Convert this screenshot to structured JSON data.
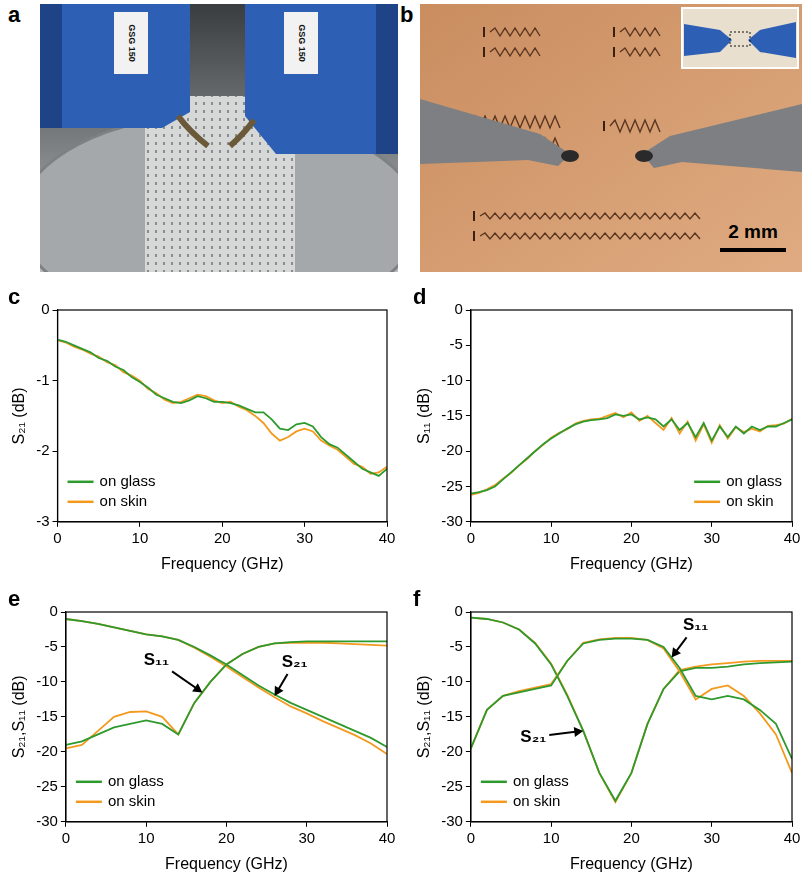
{
  "photos": [
    {
      "panel": "a",
      "labels": [
        "GSG 150",
        "GSG 150"
      ]
    },
    {
      "panel": "b",
      "scale_bar": "2 mm"
    }
  ],
  "chart_data": [
    {
      "panel": "c",
      "type": "line",
      "xlabel": "Frequency (GHz)",
      "ylabel": "S₂₁ (dB)",
      "xlim": [
        0,
        40
      ],
      "xticks": [
        0,
        10,
        20,
        30,
        40
      ],
      "ylim": [
        -3,
        0
      ],
      "yticks": [
        -3,
        -2,
        -1,
        0
      ],
      "grid": false,
      "legend": "lower left",
      "x": [
        0,
        1,
        2,
        3,
        4,
        5,
        6,
        7,
        8,
        9,
        10,
        11,
        12,
        13,
        14,
        15,
        16,
        17,
        18,
        19,
        20,
        21,
        22,
        23,
        24,
        25,
        26,
        27,
        28,
        29,
        30,
        31,
        32,
        33,
        34,
        35,
        36,
        37,
        38,
        39,
        40
      ],
      "series": [
        {
          "name": "on glass",
          "color": "#2e9a2e",
          "values": [
            -0.42,
            -0.45,
            -0.5,
            -0.55,
            -0.6,
            -0.68,
            -0.72,
            -0.8,
            -0.85,
            -0.95,
            -1.02,
            -1.1,
            -1.2,
            -1.25,
            -1.3,
            -1.32,
            -1.28,
            -1.22,
            -1.25,
            -1.3,
            -1.3,
            -1.32,
            -1.35,
            -1.4,
            -1.45,
            -1.45,
            -1.55,
            -1.68,
            -1.7,
            -1.62,
            -1.6,
            -1.65,
            -1.8,
            -1.9,
            -1.95,
            -2.05,
            -2.15,
            -2.25,
            -2.3,
            -2.35,
            -2.25
          ]
        },
        {
          "name": "on skin",
          "color": "#f39a1e",
          "values": [
            -0.43,
            -0.46,
            -0.52,
            -0.56,
            -0.62,
            -0.66,
            -0.74,
            -0.78,
            -0.88,
            -0.93,
            -1.0,
            -1.12,
            -1.18,
            -1.27,
            -1.32,
            -1.3,
            -1.25,
            -1.2,
            -1.22,
            -1.28,
            -1.32,
            -1.3,
            -1.37,
            -1.42,
            -1.5,
            -1.6,
            -1.75,
            -1.85,
            -1.8,
            -1.72,
            -1.68,
            -1.72,
            -1.85,
            -1.92,
            -1.98,
            -2.08,
            -2.18,
            -2.22,
            -2.32,
            -2.3,
            -2.22
          ]
        }
      ]
    },
    {
      "panel": "d",
      "type": "line",
      "xlabel": "Frequency (GHz)",
      "ylabel": "S₁₁ (dB)",
      "xlim": [
        0,
        40
      ],
      "xticks": [
        0,
        10,
        20,
        30,
        40
      ],
      "ylim": [
        -30,
        0
      ],
      "yticks": [
        -30,
        -25,
        -20,
        -15,
        -10,
        -5,
        0
      ],
      "grid": false,
      "legend": "lower right",
      "x": [
        0,
        1,
        2,
        3,
        4,
        5,
        6,
        7,
        8,
        9,
        10,
        11,
        12,
        13,
        14,
        15,
        16,
        17,
        18,
        19,
        20,
        21,
        22,
        23,
        24,
        25,
        26,
        27,
        28,
        29,
        30,
        31,
        32,
        33,
        34,
        35,
        36,
        37,
        38,
        39,
        40
      ],
      "series": [
        {
          "name": "on glass",
          "color": "#2e9a2e",
          "values": [
            -26,
            -25.8,
            -25.5,
            -25,
            -24,
            -23,
            -22,
            -21,
            -20,
            -19,
            -18.2,
            -17.5,
            -16.8,
            -16.2,
            -15.8,
            -15.6,
            -15.5,
            -15.3,
            -14.8,
            -15,
            -14.8,
            -15.5,
            -15.2,
            -15.5,
            -16.5,
            -15.5,
            -17,
            -16,
            -18,
            -16,
            -18.5,
            -16.5,
            -18,
            -16.5,
            -17.5,
            -16.5,
            -17,
            -16.5,
            -16.5,
            -16,
            -15.5
          ]
        },
        {
          "name": "on skin",
          "color": "#f39a1e",
          "values": [
            -26.2,
            -25.9,
            -25.4,
            -24.8,
            -23.9,
            -23.1,
            -22,
            -21.1,
            -20,
            -19.1,
            -18.1,
            -17.4,
            -16.9,
            -16.1,
            -15.7,
            -15.5,
            -15.4,
            -15,
            -14.6,
            -15.2,
            -14.5,
            -15.7,
            -15,
            -16,
            -17,
            -15.3,
            -17.5,
            -15.8,
            -18.5,
            -16.2,
            -18.8,
            -16.3,
            -18.2,
            -16.6,
            -17.3,
            -16.8,
            -17.2,
            -16.4,
            -16.3,
            -16.1,
            -15.4
          ]
        }
      ]
    },
    {
      "panel": "e",
      "type": "line",
      "xlabel": "Frequency (GHz)",
      "ylabel": "S₂₁,S₁₁ (dB)",
      "xlim": [
        0,
        40
      ],
      "xticks": [
        0,
        10,
        20,
        30,
        40
      ],
      "ylim": [
        -30,
        0
      ],
      "yticks": [
        -30,
        -25,
        -20,
        -15,
        -10,
        -5,
        0
      ],
      "grid": false,
      "legend": "lower left",
      "x": [
        0,
        2,
        4,
        6,
        8,
        10,
        12,
        14,
        16,
        18,
        20,
        22,
        24,
        26,
        28,
        30,
        32,
        34,
        36,
        38,
        40
      ],
      "series": [
        {
          "name": "on glass",
          "color": "#2e9a2e",
          "values": [
            -19,
            -18.5,
            -17.5,
            -16.5,
            -16,
            -15.5,
            -16,
            -17.5,
            -13,
            -10,
            -7.5,
            -6,
            -5,
            -4.5,
            -4.3,
            -4.2,
            -4.2,
            -4.2,
            -4.2,
            -4.2,
            -4.2
          ]
        },
        {
          "name": "on skin",
          "color": "#f39a1e",
          "values": [
            -19.5,
            -19,
            -17,
            -15,
            -14.3,
            -14.2,
            -15,
            -17.5,
            -13,
            -10,
            -7.5,
            -6,
            -5,
            -4.5,
            -4.4,
            -4.4,
            -4.4,
            -4.5,
            -4.6,
            -4.7,
            -4.8
          ]
        },
        {
          "name": "on glass",
          "color": "#2e9a2e",
          "values": [
            -1,
            -1.3,
            -1.7,
            -2.2,
            -2.7,
            -3.2,
            -3.5,
            -4,
            -5,
            -6.2,
            -7.5,
            -9,
            -10.5,
            -11.8,
            -13,
            -14,
            -15,
            -16,
            -17,
            -18,
            -19.3
          ]
        },
        {
          "name": "on skin",
          "color": "#f39a1e",
          "values": [
            -1,
            -1.3,
            -1.7,
            -2.2,
            -2.7,
            -3.2,
            -3.5,
            -4,
            -5.1,
            -6.4,
            -7.8,
            -9.3,
            -10.8,
            -12.2,
            -13.5,
            -14.5,
            -15.6,
            -16.6,
            -17.6,
            -18.8,
            -20.3
          ]
        }
      ],
      "annotations": [
        {
          "text": "S₁₁",
          "x": 17,
          "y": -11.5
        },
        {
          "text": "S₂₁",
          "x": 26,
          "y": -12
        }
      ]
    },
    {
      "panel": "f",
      "type": "line",
      "xlabel": "Frequency (GHz)",
      "ylabel": "S₂₁,S₁₁ (dB)",
      "xlim": [
        0,
        40
      ],
      "xticks": [
        0,
        10,
        20,
        30,
        40
      ],
      "ylim": [
        -30,
        0
      ],
      "yticks": [
        -30,
        -25,
        -20,
        -15,
        -10,
        -5,
        0
      ],
      "grid": false,
      "legend": "lower left",
      "x": [
        0,
        2,
        4,
        6,
        8,
        10,
        12,
        14,
        16,
        18,
        20,
        22,
        24,
        26,
        28,
        30,
        32,
        34,
        36,
        38,
        40
      ],
      "series": [
        {
          "name": "on glass",
          "color": "#2e9a2e",
          "values": [
            -19.5,
            -14,
            -12,
            -11.5,
            -11,
            -10.5,
            -7,
            -4.5,
            -4,
            -3.8,
            -3.8,
            -4,
            -5,
            -8,
            -12,
            -12.5,
            -12,
            -12.5,
            -14,
            -16,
            -21
          ]
        },
        {
          "name": "on skin",
          "color": "#f39a1e",
          "values": [
            -19.5,
            -14,
            -12,
            -11.3,
            -10.8,
            -10.3,
            -7,
            -4.4,
            -3.9,
            -3.7,
            -3.7,
            -4,
            -5.2,
            -8.5,
            -12.5,
            -11,
            -10.5,
            -12,
            -14.5,
            -17.5,
            -23
          ]
        },
        {
          "name": "on glass",
          "color": "#2e9a2e",
          "values": [
            -0.8,
            -1,
            -1.5,
            -2.5,
            -4.5,
            -7.5,
            -12,
            -17,
            -23,
            -27,
            -23,
            -16,
            -11,
            -8.5,
            -8,
            -8,
            -7.8,
            -7.5,
            -7.3,
            -7.2,
            -7.1
          ]
        },
        {
          "name": "on skin",
          "color": "#f39a1e",
          "values": [
            -0.8,
            -1,
            -1.5,
            -2.5,
            -4.4,
            -7.4,
            -11.8,
            -17,
            -23,
            -27.2,
            -23,
            -16,
            -11,
            -8.3,
            -7.8,
            -7.5,
            -7.3,
            -7.1,
            -7,
            -7,
            -7
          ]
        }
      ],
      "annotations": [
        {
          "text": "S₁₁",
          "x": 25,
          "y": -6.5
        },
        {
          "text": "S₂₁",
          "x": 14,
          "y": -17
        }
      ]
    }
  ]
}
